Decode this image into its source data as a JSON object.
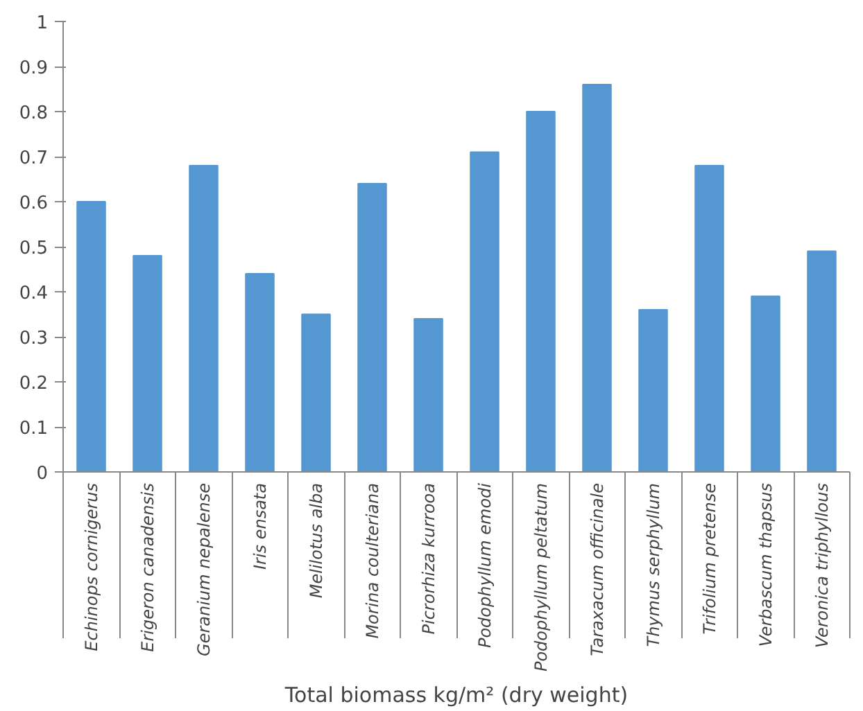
{
  "chart_data": {
    "type": "bar",
    "xlabel": "Total biomass kg/m² (dry weight)",
    "categories": [
      "Echinops cornigerus",
      "Erigeron canadensis",
      "Geranium nepalense",
      "Iris ensata",
      "Melilotus alba",
      "Morina coulteriana",
      "Picrorhiza kurrooa",
      "Podophyllum emodi",
      "Podophyllum peltatum",
      "Taraxacum officinale",
      "Thymus serphyllum",
      "Trifolium pretense",
      "Verbascum thapsus",
      "Veronica triphyllous"
    ],
    "values": [
      0.6,
      0.48,
      0.68,
      0.44,
      0.35,
      0.64,
      0.34,
      0.71,
      0.8,
      0.86,
      0.36,
      0.68,
      0.39,
      0.49
    ],
    "color": "#5597d0",
    "ylim": [
      0,
      1
    ],
    "yticks": [
      0,
      0.1,
      0.2,
      0.3,
      0.4,
      0.5,
      0.6,
      0.7,
      0.8,
      0.9,
      1
    ],
    "grid": false
  }
}
